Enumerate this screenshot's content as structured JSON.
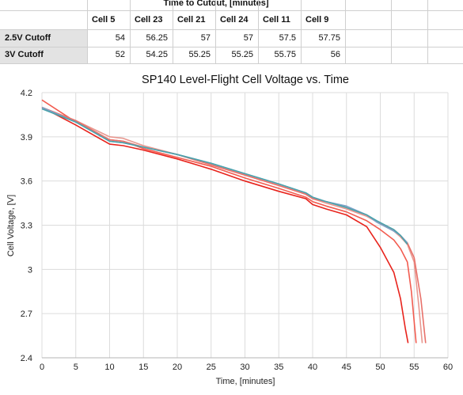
{
  "table": {
    "title": "Time to Cutout, [minutes]",
    "columns": [
      "Cell 5",
      "Cell 23",
      "Cell 21",
      "Cell 24",
      "Cell 11",
      "Cell 9"
    ],
    "rows": [
      {
        "label": "2.5V Cutoff",
        "values": [
          "54",
          "56.25",
          "57",
          "57",
          "57.5",
          "57.75"
        ]
      },
      {
        "label": "3V Cutoff",
        "values": [
          "52",
          "54.25",
          "55.25",
          "55.25",
          "55.75",
          "56"
        ]
      }
    ]
  },
  "chart_data": {
    "type": "line",
    "title": "SP140 Level-Flight Cell Voltage vs. Time",
    "xlabel": "Time, [minutes]",
    "ylabel": "Cell Voltage, [V]",
    "xlim": [
      0,
      60
    ],
    "ylim": [
      2.4,
      4.2
    ],
    "xticks": [
      "0",
      "5",
      "10",
      "15",
      "20",
      "25",
      "30",
      "35",
      "40",
      "45",
      "50",
      "55",
      "60"
    ],
    "yticks": [
      "2.4",
      "2.7",
      "3",
      "3.3",
      "3.6",
      "3.9",
      "4.2"
    ],
    "grid": true,
    "series": [
      {
        "color": "#e8231c",
        "points": [
          [
            0,
            4.1
          ],
          [
            5,
            3.98
          ],
          [
            10,
            3.85
          ],
          [
            12,
            3.84
          ],
          [
            15,
            3.81
          ],
          [
            20,
            3.75
          ],
          [
            25,
            3.68
          ],
          [
            30,
            3.6
          ],
          [
            35,
            3.53
          ],
          [
            39,
            3.48
          ],
          [
            40,
            3.44
          ],
          [
            42,
            3.41
          ],
          [
            45,
            3.37
          ],
          [
            48,
            3.29
          ],
          [
            50,
            3.15
          ],
          [
            52,
            2.98
          ],
          [
            53,
            2.8
          ],
          [
            53.7,
            2.6
          ],
          [
            54.1,
            2.5
          ]
        ]
      },
      {
        "color": "#f25c50",
        "points": [
          [
            0,
            4.15
          ],
          [
            5,
            4.0
          ],
          [
            10,
            3.88
          ],
          [
            12,
            3.87
          ],
          [
            15,
            3.82
          ],
          [
            20,
            3.76
          ],
          [
            25,
            3.7
          ],
          [
            30,
            3.62
          ],
          [
            35,
            3.55
          ],
          [
            39,
            3.49
          ],
          [
            40,
            3.46
          ],
          [
            42,
            3.43
          ],
          [
            45,
            3.39
          ],
          [
            48,
            3.33
          ],
          [
            50,
            3.27
          ],
          [
            52,
            3.2
          ],
          [
            53,
            3.14
          ],
          [
            54,
            3.05
          ],
          [
            54.6,
            2.85
          ],
          [
            55.3,
            2.5
          ]
        ]
      },
      {
        "color": "#e89890",
        "points": [
          [
            0,
            4.1
          ],
          [
            5,
            4.01
          ],
          [
            10,
            3.9
          ],
          [
            12,
            3.89
          ],
          [
            15,
            3.84
          ],
          [
            20,
            3.78
          ],
          [
            25,
            3.71
          ],
          [
            30,
            3.64
          ],
          [
            35,
            3.57
          ],
          [
            39,
            3.51
          ],
          [
            40,
            3.48
          ],
          [
            42,
            3.45
          ],
          [
            45,
            3.41
          ],
          [
            48,
            3.36
          ],
          [
            50,
            3.31
          ],
          [
            52,
            3.26
          ],
          [
            53,
            3.22
          ],
          [
            54,
            3.17
          ],
          [
            55,
            3.05
          ],
          [
            55.7,
            2.75
          ],
          [
            56.2,
            2.5
          ]
        ]
      },
      {
        "color": "#e8716a",
        "points": [
          [
            0,
            4.1
          ],
          [
            5,
            4.01
          ],
          [
            10,
            3.88
          ],
          [
            12,
            3.87
          ],
          [
            15,
            3.83
          ],
          [
            20,
            3.78
          ],
          [
            25,
            3.71
          ],
          [
            30,
            3.64
          ],
          [
            35,
            3.57
          ],
          [
            39,
            3.51
          ],
          [
            40,
            3.48
          ],
          [
            42,
            3.46
          ],
          [
            45,
            3.42
          ],
          [
            48,
            3.37
          ],
          [
            50,
            3.31
          ],
          [
            52,
            3.27
          ],
          [
            53,
            3.23
          ],
          [
            54,
            3.18
          ],
          [
            55,
            3.08
          ],
          [
            56,
            2.8
          ],
          [
            56.7,
            2.5
          ]
        ]
      },
      {
        "color": "#7fa2c8",
        "points": [
          [
            0,
            4.1
          ],
          [
            5,
            4.0
          ],
          [
            10,
            3.87
          ],
          [
            12,
            3.86
          ],
          [
            15,
            3.83
          ],
          [
            20,
            3.78
          ],
          [
            25,
            3.72
          ],
          [
            30,
            3.65
          ],
          [
            35,
            3.58
          ],
          [
            39,
            3.52
          ],
          [
            40,
            3.49
          ],
          [
            42,
            3.46
          ],
          [
            45,
            3.43
          ],
          [
            48,
            3.37
          ],
          [
            49.5,
            3.32
          ],
          [
            52,
            3.26
          ],
          [
            53,
            3.23
          ],
          [
            54,
            3.18
          ]
        ]
      },
      {
        "color": "#4aa3ac",
        "points": [
          [
            0,
            4.09
          ],
          [
            5,
            4.0
          ],
          [
            10,
            3.87
          ],
          [
            12,
            3.86
          ],
          [
            15,
            3.83
          ],
          [
            20,
            3.78
          ],
          [
            25,
            3.72
          ],
          [
            30,
            3.65
          ],
          [
            35,
            3.58
          ],
          [
            39,
            3.52
          ],
          [
            40,
            3.49
          ],
          [
            42,
            3.46
          ],
          [
            45,
            3.42
          ],
          [
            48,
            3.37
          ],
          [
            49.5,
            3.33
          ],
          [
            52,
            3.27
          ],
          [
            53,
            3.23
          ],
          [
            54,
            3.17
          ]
        ]
      }
    ]
  }
}
